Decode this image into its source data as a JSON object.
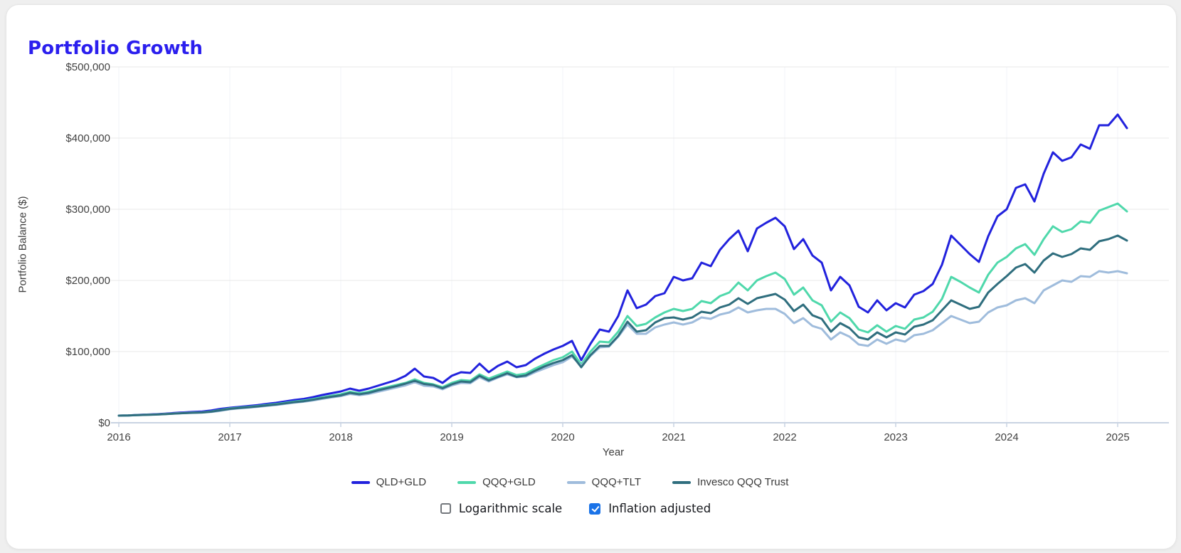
{
  "page_title": "Portfolio Growth",
  "title_color": "#2b1fee",
  "controls": {
    "logarithmic": {
      "label": "Logarithmic scale",
      "checked": false
    },
    "inflation": {
      "label": "Inflation adjusted",
      "checked": true,
      "check_color": "#1a73e8"
    }
  },
  "chart_data": {
    "type": "line",
    "title": "Portfolio Growth",
    "xlabel": "Year",
    "ylabel": "Portfolio Balance ($)",
    "legend_position": "bottom",
    "grid": "horizontal-and-faint-vertical",
    "x_frequency": "monthly",
    "x_start": "2016-01",
    "x_end": "2025-02",
    "x_tick_labels": [
      "2016",
      "2017",
      "2018",
      "2019",
      "2020",
      "2021",
      "2022",
      "2023",
      "2024",
      "2025"
    ],
    "y_ticks_usd": [
      0,
      100000,
      200000,
      300000,
      400000,
      500000
    ],
    "y_tick_labels": [
      "$0",
      "$100,000",
      "$200,000",
      "$300,000",
      "$400,000",
      "$500,000"
    ],
    "ylim_usd": [
      0,
      500000
    ],
    "axis_color": "#c9d3e2",
    "gridline_color": "#e9e9e9",
    "vgridline_color": "#f0f3f8",
    "series": [
      {
        "name": "QLD+GLD",
        "color": "#2222dd",
        "values_usd_thousands": [
          10,
          10.3,
          11,
          11.5,
          12,
          12.8,
          13.8,
          14.5,
          15.2,
          15.8,
          17.3,
          19.5,
          21,
          22.3,
          23.5,
          24.8,
          26.5,
          28,
          30,
          32,
          33.5,
          36,
          39,
          41.5,
          44,
          48,
          45,
          48,
          52,
          56,
          60,
          66,
          76,
          65,
          63,
          56,
          66,
          71,
          70,
          83,
          71,
          80,
          86,
          78,
          81,
          90,
          97,
          103,
          108,
          115,
          88,
          111,
          131,
          128,
          150,
          186,
          161,
          166,
          178,
          182,
          205,
          200,
          203,
          225,
          220,
          243,
          258,
          270,
          241,
          273,
          281,
          288,
          276,
          244,
          258,
          235,
          225,
          186,
          205,
          193,
          163,
          155,
          172,
          158,
          168,
          162,
          180,
          185,
          195,
          222,
          263,
          250,
          237,
          226,
          262,
          290,
          300,
          330,
          335,
          311,
          350,
          380,
          368,
          373,
          391,
          385,
          418,
          418,
          433,
          414
        ]
      },
      {
        "name": "QQQ+GLD",
        "color": "#4fd8ab",
        "values_usd_thousands": [
          10,
          10.2,
          10.8,
          11.2,
          11.6,
          12.3,
          13,
          13.6,
          14.2,
          14.6,
          15.9,
          18,
          20,
          21.2,
          22.3,
          23.5,
          25,
          26.3,
          28,
          29.8,
          31.2,
          33.3,
          35.8,
          38,
          40,
          43.5,
          41.5,
          43.5,
          47,
          50,
          53,
          56,
          61,
          56,
          54,
          50,
          56,
          60,
          59,
          68,
          62,
          67,
          72,
          67,
          69,
          76,
          82,
          88,
          92,
          100,
          82,
          100,
          114,
          113,
          128,
          150,
          136,
          139,
          148,
          155,
          160,
          157,
          160,
          171,
          168,
          178,
          183,
          197,
          186,
          200,
          206,
          211,
          202,
          180,
          190,
          172,
          165,
          142,
          155,
          147,
          131,
          127,
          137,
          128,
          136,
          132,
          145,
          148,
          156,
          174,
          205,
          198,
          190,
          183,
          208,
          225,
          233,
          245,
          251,
          236,
          258,
          276,
          268,
          272,
          283,
          281,
          298,
          303,
          308,
          297
        ]
      },
      {
        "name": "QQQ+TLT",
        "color": "#9fbcdc",
        "values_usd_thousands": [
          10,
          10.2,
          10.8,
          11.2,
          11.6,
          12.4,
          13.1,
          13.7,
          14.2,
          14.5,
          15.2,
          16.8,
          19,
          20.2,
          21.3,
          22.4,
          23.8,
          25,
          26.6,
          28.3,
          29.6,
          31.4,
          33.6,
          35.6,
          37.5,
          40.5,
          38.8,
          40.5,
          43.5,
          46.5,
          49.5,
          52.5,
          57,
          52,
          51,
          47,
          52.5,
          56,
          55.5,
          64,
          58,
          63.5,
          68,
          64,
          65,
          71,
          76,
          81,
          85,
          93,
          80,
          94,
          106,
          107,
          121,
          138,
          125,
          125,
          134,
          138,
          141,
          138,
          141,
          148,
          146,
          152,
          155,
          162,
          155,
          158,
          160,
          160,
          153,
          140,
          147,
          136,
          132,
          117,
          127,
          121,
          110,
          108,
          117,
          111,
          117,
          114,
          123,
          125,
          130,
          140,
          150,
          145,
          140,
          142,
          155,
          162,
          165,
          172,
          175,
          168,
          186,
          193,
          200,
          198,
          206,
          205,
          213,
          211,
          213,
          210
        ]
      },
      {
        "name": "Invesco QQQ Trust",
        "color": "#2f6e7e",
        "values_usd_thousands": [
          10,
          10.2,
          10.7,
          11.1,
          11.5,
          12.1,
          12.9,
          13.5,
          14,
          14.4,
          15.6,
          17.6,
          19.5,
          20.7,
          21.8,
          23,
          24.4,
          25.6,
          27.3,
          29,
          30.3,
          32.3,
          34.6,
          36.6,
          38.5,
          42,
          40,
          42,
          45.5,
          48.5,
          51.5,
          55,
          59,
          54.5,
          53,
          48.5,
          54,
          58,
          57,
          66,
          59.5,
          64.5,
          69.5,
          64.5,
          66.5,
          73,
          79,
          84,
          88,
          95,
          78,
          95,
          108,
          108,
          122,
          142,
          128,
          130,
          141,
          147,
          148,
          145,
          148,
          156,
          154,
          162,
          166,
          175,
          167,
          175,
          178,
          181,
          173,
          157,
          166,
          151,
          146,
          128,
          140,
          133,
          120,
          117,
          127,
          120,
          127,
          124,
          135,
          138,
          144,
          158,
          172,
          166,
          160,
          163,
          183,
          195,
          206,
          218,
          223,
          211,
          228,
          238,
          233,
          237,
          245,
          243,
          255,
          258,
          263,
          256
        ]
      }
    ]
  }
}
